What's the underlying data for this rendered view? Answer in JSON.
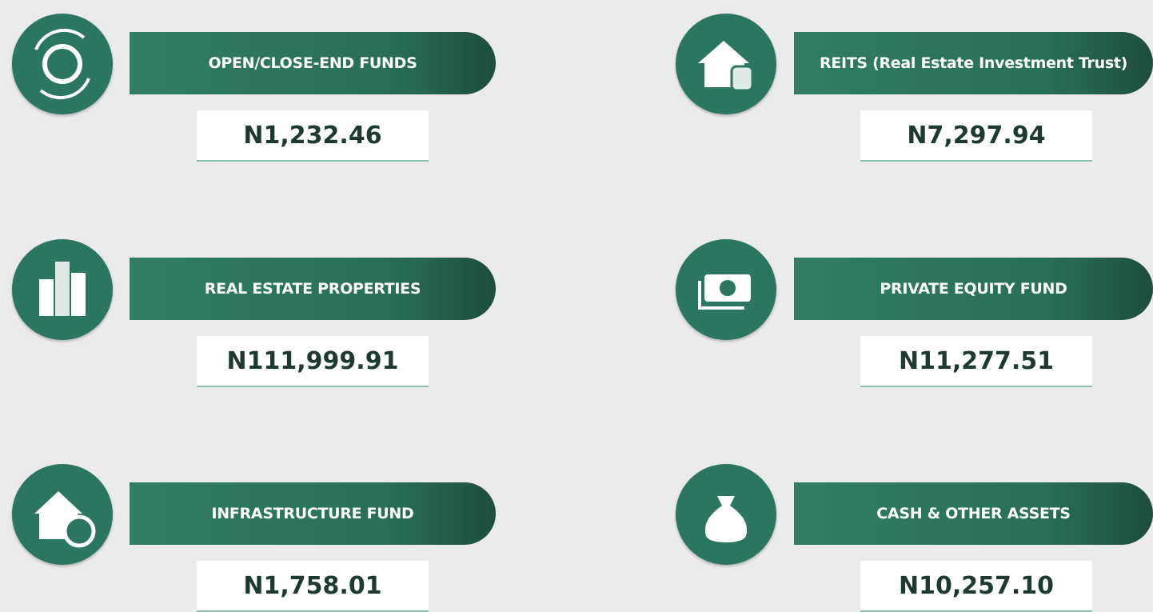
{
  "items": [
    {
      "label": "OPEN/CLOSE-END FUNDS",
      "value": "N1,232.46"
    },
    {
      "label": "REITS (Real Estate Investment Trust)",
      "value": "N7,297.94"
    },
    {
      "label": "REAL ESTATE PROPERTIES",
      "value": "N111,999.91"
    },
    {
      "label": "PRIVATE EQUITY FUND",
      "value": "N11,277.51"
    },
    {
      "label": "INFRASTRUCTURE FUND",
      "value": "N1,758.01"
    },
    {
      "label": "CASH & OTHER ASSETS",
      "value": "N10,257.10"
    }
  ]
}
